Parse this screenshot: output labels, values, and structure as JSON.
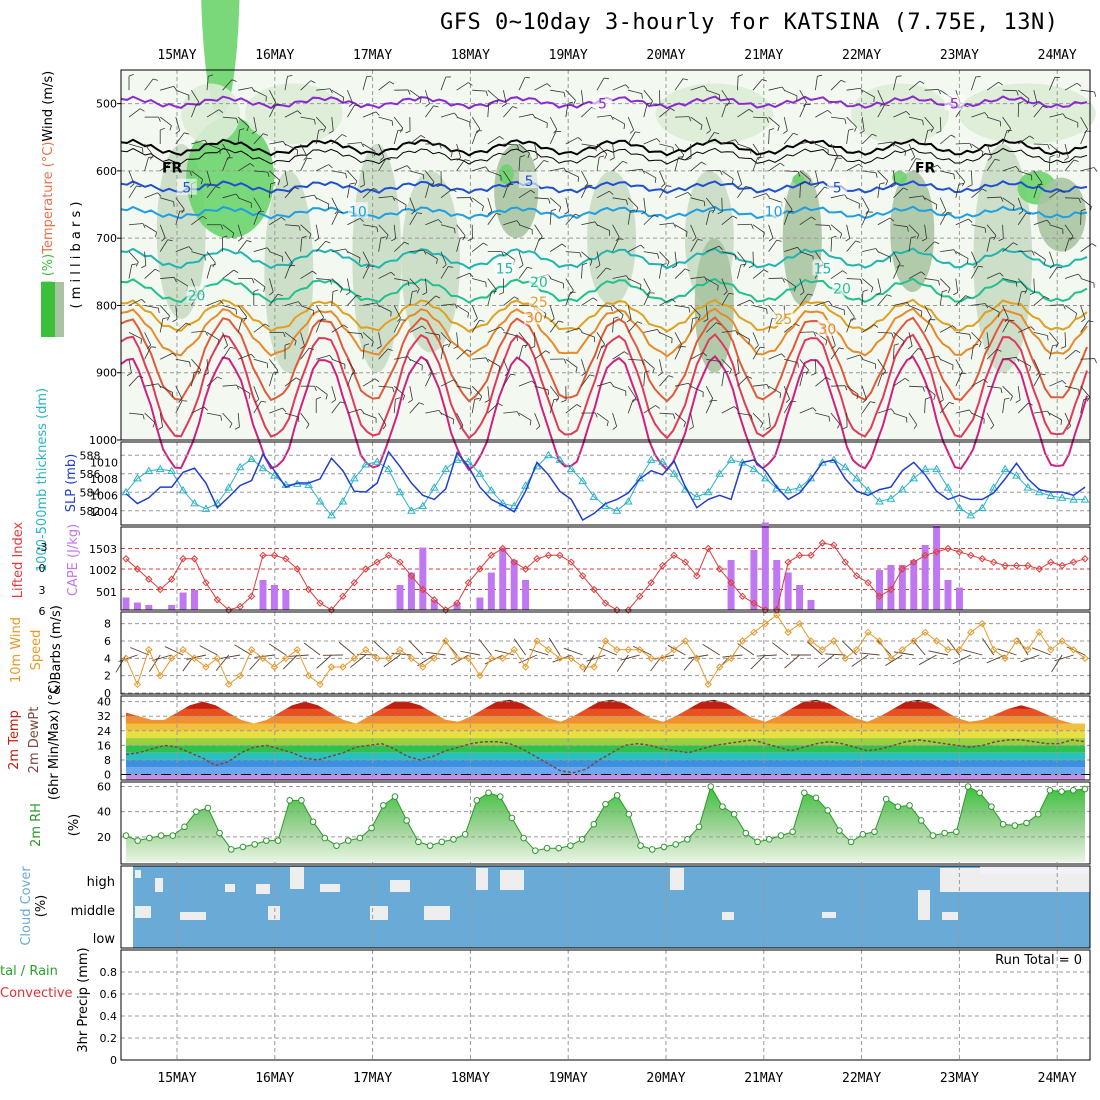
{
  "title": "GFS 0~10day 3-hourly for KATSINA (7.75E, 13N)",
  "dates": [
    "15MAY",
    "16MAY",
    "17MAY",
    "18MAY",
    "19MAY",
    "20MAY",
    "21MAY",
    "22MAY",
    "23MAY",
    "24MAY"
  ],
  "colors": {
    "grid": "#9a9a9a",
    "rh_green": "#3cc03c",
    "slp": "#1f3fcf",
    "thickness": "#2bb3c7",
    "lifted_index": "#e03a3a",
    "cape": "#c078f0",
    "wind": "#e8982a",
    "barbs": "#5a4030",
    "rh2m": "#2a9a2a",
    "cloud": "#6aaad6",
    "precip_total": "#2aa02a",
    "precip_conv": "#e03030"
  },
  "chart_data": [
    {
      "type": "heatmap",
      "panel": "upper-air",
      "ylabel_segments": [
        {
          "text": "RH (%)",
          "color": "#3cc03c"
        },
        {
          "text": "Temperature (°C)",
          "color": "#e8704a"
        },
        {
          "text": "Wind (m/s)",
          "color": "#000000"
        }
      ],
      "ylabel_units": "( m i l l i b a r s )",
      "yticks": [
        500,
        600,
        700,
        800,
        900,
        1000
      ],
      "ylim": [
        1000,
        450
      ],
      "contour_labels": [
        {
          "text": "5",
          "color": "#8a2bd0",
          "day": 4.35,
          "p": 500
        },
        {
          "text": "5",
          "color": "#8a2bd0",
          "day": 7.95,
          "p": 500
        },
        {
          "text": "5",
          "color": "#2050d0",
          "day": 0.1,
          "p": 625
        },
        {
          "text": "5",
          "color": "#2050d0",
          "day": 3.6,
          "p": 615
        },
        {
          "text": "5",
          "color": "#2050d0",
          "day": 6.75,
          "p": 625
        },
        {
          "text": "10",
          "color": "#1f9ee0",
          "day": 1.85,
          "p": 660
        },
        {
          "text": "10",
          "color": "#1f9ee0",
          "day": 6.1,
          "p": 660
        },
        {
          "text": "15",
          "color": "#21b5b0",
          "day": 3.35,
          "p": 745
        },
        {
          "text": "15",
          "color": "#21b5b0",
          "day": 6.6,
          "p": 745
        },
        {
          "text": "20",
          "color": "#22c090",
          "day": 0.2,
          "p": 785
        },
        {
          "text": "20",
          "color": "#22c090",
          "day": 3.7,
          "p": 765
        },
        {
          "text": "20",
          "color": "#22c090",
          "day": 6.8,
          "p": 775
        },
        {
          "text": "25",
          "color": "#e0a020",
          "day": 3.7,
          "p": 795
        },
        {
          "text": "25",
          "color": "#e0a020",
          "day": 6.2,
          "p": 820
        },
        {
          "text": "30",
          "color": "#e88a2a",
          "day": 3.65,
          "p": 818
        },
        {
          "text": "30",
          "color": "#e88a2a",
          "day": 6.65,
          "p": 835
        },
        {
          "text": "FR",
          "color": "#000000",
          "day": -0.05,
          "p": 595
        },
        {
          "text": "FR",
          "color": "#000000",
          "day": 7.65,
          "p": 595
        }
      ]
    },
    {
      "type": "line",
      "panel": "slp-thickness",
      "ylabel_left": "1000-500mb thickness (dm)",
      "ylabel_right": "SLP (mb)",
      "yticks_left": [
        582,
        584,
        586,
        588
      ],
      "yticks_right": [
        1004,
        1006,
        1008,
        1010
      ],
      "series": [
        {
          "name": "SLP (mb)",
          "axis": "right",
          "values": [
            1006.2,
            1005,
            1005.7,
            1007,
            1007,
            1008.8,
            1009.3,
            1007.5,
            1004.5,
            1005.8,
            1007.2,
            1007.8,
            1011,
            1009,
            1007,
            1007.5,
            1007.5,
            1008,
            1010.5,
            1009,
            1006.5,
            1006.4,
            1007.5,
            1011.3,
            1009.5,
            1007.5,
            1006,
            1005.5,
            1006.8,
            1011.2,
            1009.5,
            1007,
            1005.5,
            1004.8,
            1004,
            1006.5,
            1010,
            1008.5,
            1006.5,
            1005.5,
            1003,
            1003.8,
            1005,
            1005.5,
            1006.3,
            1008,
            1009,
            1008.5,
            1010.2,
            1007,
            1004.5,
            1005.5,
            1006,
            1005.5,
            1010,
            1010.3,
            1009,
            1007,
            1005.5,
            1006.3,
            1008,
            1010,
            1010.3,
            1008,
            1006.5,
            1006,
            1006.7,
            1007,
            1009,
            1010,
            1008.5,
            1006.5,
            1005.5,
            1006,
            1005.5,
            1005.5,
            1006.3,
            1008,
            1009.9,
            1008,
            1006.7,
            1006.4,
            1006.4,
            1006,
            1007
          ]
        },
        {
          "name": "1000-500mb thickness (dm)",
          "axis": "left",
          "values": [
            584,
            585.5,
            586.3,
            586.5,
            586.3,
            584.2,
            582.8,
            582.2,
            582.8,
            584.5,
            586.7,
            587.6,
            586.6,
            585.8,
            584.8,
            584.9,
            584.8,
            583,
            581.5,
            583,
            585.5,
            587,
            587.3,
            586.5,
            584,
            582,
            582.5,
            584.5,
            586.5,
            587.5,
            587.3,
            586,
            584.2,
            582.8,
            582.5,
            584.7,
            586.8,
            588,
            587.5,
            586.5,
            585.2,
            583.5,
            582.5,
            582,
            583,
            585.5,
            587.5,
            587.3,
            586,
            584.3,
            583.5,
            584,
            586,
            587.5,
            587.2,
            586.5,
            585.5,
            584.4,
            584.2,
            584.5,
            585.5,
            587.2,
            587.5,
            586.7,
            585.5,
            584.2,
            583,
            583.3,
            584.3,
            585.5,
            586.5,
            586.5,
            584.5,
            582.3,
            581.5,
            582.3,
            584.5,
            586.5,
            585.8,
            584.5,
            584,
            583.6,
            583.4,
            583.2,
            583.2
          ]
        }
      ]
    },
    {
      "type": "bar",
      "panel": "lifted-index-cape",
      "ylabel_left": "Lifted Index",
      "ylabel_right": "CAPE (J/kg)",
      "yticks_left": [
        "-3",
        "0",
        "3",
        "6"
      ],
      "yticks_right": [
        "1503",
        "1002",
        "501"
      ],
      "series": [
        {
          "name": "Lifted Index",
          "values": [
            -1.5,
            0,
            1.5,
            3,
            1.5,
            -1.5,
            -1.5,
            2,
            4.5,
            6,
            5.5,
            4,
            -2,
            -2,
            -1.5,
            0,
            3,
            5,
            6,
            4,
            2,
            0,
            -1,
            -2,
            -1,
            1,
            3,
            4.5,
            6,
            5,
            2,
            0,
            -2,
            -3,
            -1,
            0,
            -1.5,
            -2,
            -2,
            -1,
            1,
            3,
            5,
            6,
            6,
            4,
            2,
            -0.5,
            -2,
            -1,
            1,
            -3,
            0,
            2,
            4,
            5,
            6,
            6,
            -1,
            -2,
            -2,
            -3.8,
            -3.5,
            -1,
            1,
            2,
            4,
            3,
            0,
            -1,
            -2,
            -2.5,
            -3,
            -2.5,
            -2,
            -1.5,
            -1,
            -0.5,
            -0.5,
            -0.5,
            0,
            -1,
            -0.5,
            -1,
            -1.5
          ]
        },
        {
          "name": "CAPE (J/kg)",
          "values": [
            250,
            150,
            100,
            0,
            100,
            350,
            400,
            0,
            0,
            0,
            0,
            0,
            600,
            500,
            400,
            0,
            0,
            0,
            0,
            0,
            0,
            0,
            0,
            0,
            500,
            750,
            1250,
            200,
            0,
            150,
            0,
            250,
            750,
            1250,
            1000,
            600,
            0,
            0,
            0,
            0,
            0,
            0,
            0,
            0,
            0,
            0,
            0,
            0,
            0,
            0,
            0,
            0,
            0,
            1000,
            0,
            1200,
            1750,
            1000,
            750,
            500,
            200,
            0,
            0,
            0,
            0,
            0,
            800,
            900,
            900,
            1000,
            1300,
            1700,
            600,
            450,
            0,
            0,
            0,
            0,
            0,
            0,
            0,
            0,
            0,
            0,
            0
          ]
        }
      ]
    },
    {
      "type": "line",
      "panel": "wind10m",
      "ylabel": "10m Wind Speed & Barbs (m/s)",
      "yticks": [
        0,
        2,
        4,
        6,
        8
      ],
      "ylim": [
        0,
        9
      ],
      "series": [
        {
          "name": "10m Wind Speed",
          "values": [
            4,
            1,
            5,
            2,
            4,
            5,
            4,
            3,
            4,
            1,
            2,
            5,
            4,
            3,
            4,
            5,
            2,
            1,
            3,
            3,
            4,
            5,
            4,
            4,
            5,
            4,
            3,
            4,
            6,
            4,
            4,
            2,
            4,
            4,
            5,
            3,
            6,
            5,
            4,
            4,
            3,
            3,
            6,
            5,
            5,
            5,
            4,
            4,
            5,
            6,
            4,
            1,
            3,
            4,
            6,
            7,
            8,
            9,
            7,
            8,
            6,
            5,
            6,
            4,
            5,
            7,
            6,
            4,
            5,
            6,
            7,
            6,
            5,
            5,
            7,
            8,
            5,
            4,
            6,
            5,
            7,
            5,
            6,
            5,
            4
          ]
        }
      ]
    },
    {
      "type": "area",
      "panel": "temp2m",
      "ylabel": "2m Temp 2m DewPt (6hr Min/Max) (°C)",
      "yticks": [
        0,
        8,
        16,
        24,
        32,
        40
      ],
      "ylim": [
        -3,
        42
      ],
      "series": [
        {
          "name": "2m Temp",
          "values": [
            34,
            32,
            30,
            30,
            34,
            38,
            40,
            38,
            34,
            30,
            28,
            30,
            34,
            38,
            40,
            38,
            34,
            30,
            28,
            32,
            36,
            40,
            40,
            38,
            34,
            30,
            29,
            32,
            36,
            40,
            41,
            39,
            35,
            31,
            29,
            32,
            36,
            40,
            41,
            39,
            35,
            31,
            29,
            32,
            36,
            40,
            41,
            39,
            35,
            31,
            29,
            32,
            36,
            40,
            41,
            39,
            35,
            31,
            29,
            32,
            36,
            40,
            41,
            39,
            35,
            31,
            29,
            30,
            33,
            36,
            38,
            36,
            33,
            30,
            28,
            28
          ]
        },
        {
          "name": "2m DewPt",
          "values": [
            11,
            12,
            14,
            16,
            15,
            12,
            9,
            5,
            7,
            12,
            15,
            16,
            14,
            12,
            9,
            8,
            10,
            12,
            15,
            16,
            17,
            14,
            10,
            8,
            10,
            13,
            15,
            17,
            18,
            18,
            17,
            14,
            10,
            6,
            2,
            1,
            3,
            8,
            12,
            16,
            17,
            16,
            14,
            13,
            12,
            14,
            16,
            17,
            18,
            19,
            17,
            15,
            13,
            15,
            17,
            18,
            17,
            15,
            13,
            14,
            16,
            18,
            19,
            18,
            17,
            16,
            15,
            16,
            18,
            19,
            19,
            18,
            17,
            17,
            19,
            18
          ]
        }
      ]
    },
    {
      "type": "area",
      "panel": "rh2m",
      "ylabel": "2m RH (%)",
      "yticks": [
        20,
        40,
        60
      ],
      "ylim": [
        0,
        62
      ],
      "series": [
        {
          "name": "2m RH",
          "values": [
            21,
            17,
            19,
            21,
            21,
            28,
            40,
            43,
            23,
            10,
            12,
            14,
            17,
            17,
            49,
            49,
            32,
            19,
            13,
            17,
            19,
            27,
            45,
            52,
            33,
            16,
            13,
            16,
            18,
            22,
            49,
            55,
            52,
            35,
            19,
            9,
            11,
            11,
            13,
            18,
            30,
            46,
            53,
            38,
            13,
            10,
            12,
            14,
            18,
            28,
            60,
            44,
            38,
            23,
            16,
            18,
            21,
            24,
            55,
            51,
            41,
            25,
            16,
            22,
            24,
            50,
            44,
            45,
            33,
            21,
            23,
            24,
            60,
            55,
            44,
            30,
            29,
            31,
            38,
            57,
            56,
            57,
            58
          ]
        }
      ]
    },
    {
      "type": "bar",
      "panel": "cloud-cover",
      "ylabel": "Cloud Cover (%)",
      "categories": [
        "high",
        "middle",
        "low"
      ]
    },
    {
      "type": "bar",
      "panel": "precip",
      "ylabel_left_1": "Total / Rain",
      "ylabel_left_2": "Convective",
      "ylabel": "3hr Precip (mm)",
      "yticks": [
        "0",
        "0.2",
        "0.4",
        "0.6",
        "0.8"
      ],
      "annotation": "Run Total = 0",
      "values": []
    }
  ]
}
